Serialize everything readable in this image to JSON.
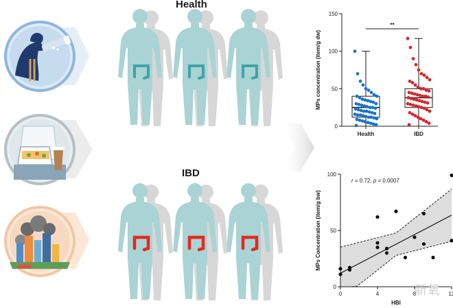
{
  "groups": {
    "health_title": "Health",
    "ibd_title": "IBD"
  },
  "colors": {
    "body": "#a9d3d4",
    "shadow": "#cfcfcf",
    "health_colon": "#3ea4a8",
    "ibd_colon": "#e8281c",
    "health_dots": "#1a73c9",
    "ibd_dots": "#d7262b",
    "arrow": "#d8d8d8"
  },
  "icons": [
    "drinking-water-icon",
    "takeout-food-icon",
    "polluted-city-icon"
  ],
  "chart_data": [
    {
      "type": "box",
      "ylabel": "MPs concentration (item/g dw)",
      "categories": [
        "Health",
        "IBD"
      ],
      "ylim": [
        0,
        150
      ],
      "yticks": [
        "0",
        "50",
        "100",
        "150"
      ],
      "significance": "**",
      "boxes": [
        {
          "name": "Health",
          "min": 0,
          "q1": 12,
          "median": 25,
          "q3": 40,
          "max": 100
        },
        {
          "name": "IBD",
          "min": 0,
          "q1": 25,
          "median": 38,
          "q3": 50,
          "max": 117
        }
      ],
      "points": [
        {
          "name": "Health",
          "values": [
            100,
            70,
            60,
            55,
            50,
            48,
            45,
            42,
            40,
            40,
            38,
            36,
            35,
            34,
            33,
            32,
            30,
            30,
            29,
            28,
            27,
            26,
            25,
            25,
            24,
            23,
            22,
            21,
            20,
            20,
            19,
            18,
            17,
            16,
            15,
            15,
            14,
            13,
            12,
            12,
            11,
            10,
            9,
            8,
            7,
            6,
            5,
            4,
            3,
            2,
            1
          ]
        },
        {
          "name": "IBD",
          "values": [
            117,
            105,
            90,
            82,
            75,
            70,
            68,
            65,
            62,
            60,
            58,
            55,
            52,
            50,
            50,
            48,
            47,
            45,
            44,
            43,
            42,
            41,
            40,
            40,
            39,
            38,
            37,
            36,
            35,
            34,
            33,
            32,
            31,
            30,
            29,
            28,
            27,
            26,
            25,
            24,
            22,
            20,
            18,
            16,
            14,
            12,
            10,
            8,
            6,
            4,
            2
          ]
        }
      ]
    },
    {
      "type": "scatter",
      "annotation": "r = 0.72, p = 0.0007",
      "annotation_r": "r",
      "annotation_eq": " = 0.72, ",
      "annotation_p": "p",
      "annotation_pval": " = 0.0007",
      "xlabel": "HBI",
      "ylabel": "MPs Concentration (item/g bw)",
      "xlim": [
        0,
        12
      ],
      "ylim": [
        0,
        100
      ],
      "xticks": [
        "0",
        "4",
        "8",
        "12"
      ],
      "yticks": [
        "0",
        "50",
        "100"
      ],
      "x": [
        0,
        0,
        1,
        1,
        4,
        4,
        4,
        5,
        5,
        6,
        7,
        8,
        9,
        9,
        10,
        12,
        12
      ],
      "y": [
        11,
        16,
        15,
        17,
        62,
        39,
        35,
        30,
        34,
        67,
        26,
        44,
        38,
        65,
        26,
        99,
        41
      ],
      "fit": {
        "slope": 4.3,
        "intercept": 12
      },
      "ci_band": true
    }
  ]
}
